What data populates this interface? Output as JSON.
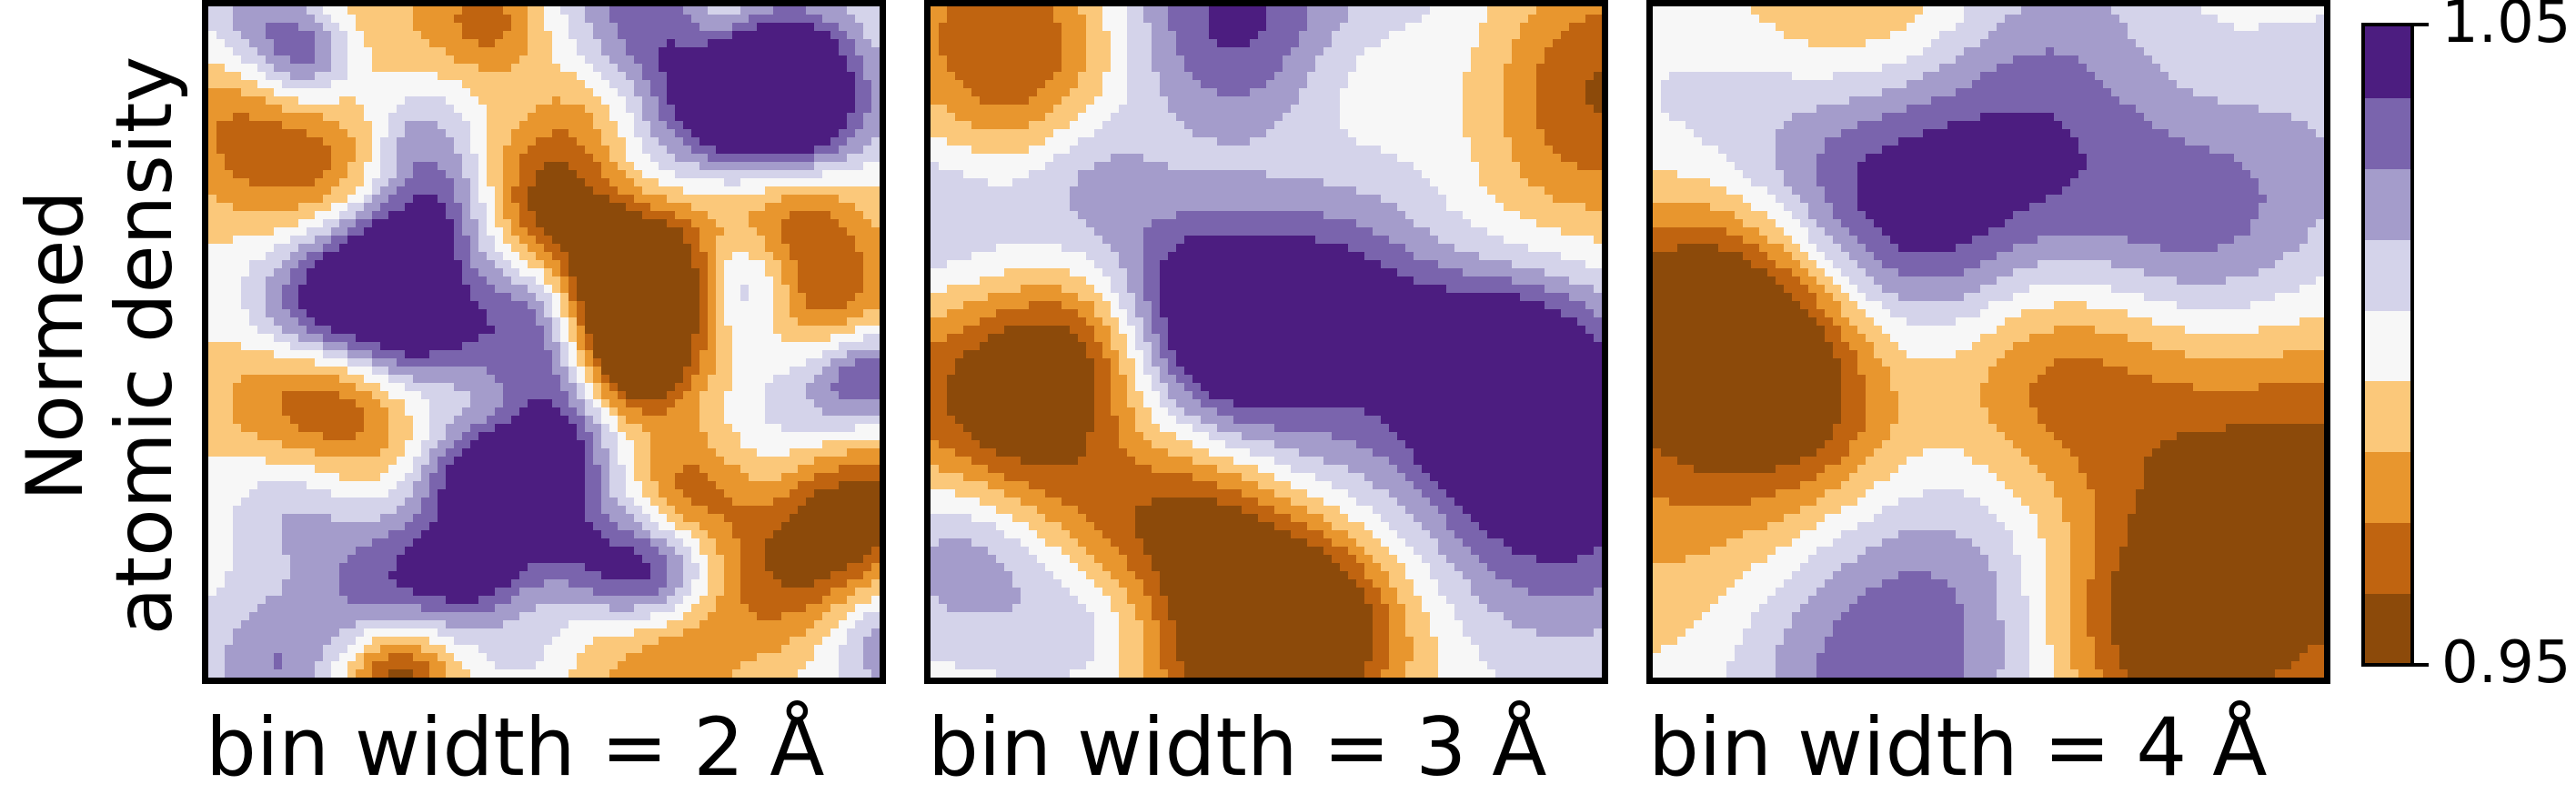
{
  "chart_data": [
    {
      "type": "heatmap",
      "xlabel": "bin width = 2 Å",
      "seed": 11,
      "blobs": 72,
      "scale": 58
    },
    {
      "type": "heatmap",
      "xlabel": "bin width = 3 Å",
      "seed": 23,
      "blobs": 40,
      "scale": 84
    },
    {
      "type": "heatmap",
      "xlabel": "bin width = 4 Å",
      "seed": 37,
      "blobs": 26,
      "scale": 110
    }
  ],
  "ylabel_lines": [
    "Normed",
    "atomic density"
  ],
  "colorbar": {
    "min_label": "0.95",
    "max_label": "1.05",
    "range": [
      0.95,
      1.05
    ],
    "colors": [
      "#8c4a0a",
      "#c06410",
      "#e8962e",
      "#fbc87a",
      "#f7f7f7",
      "#d4d3ea",
      "#a49ccb",
      "#7a64ad",
      "#4c1d80"
    ]
  }
}
